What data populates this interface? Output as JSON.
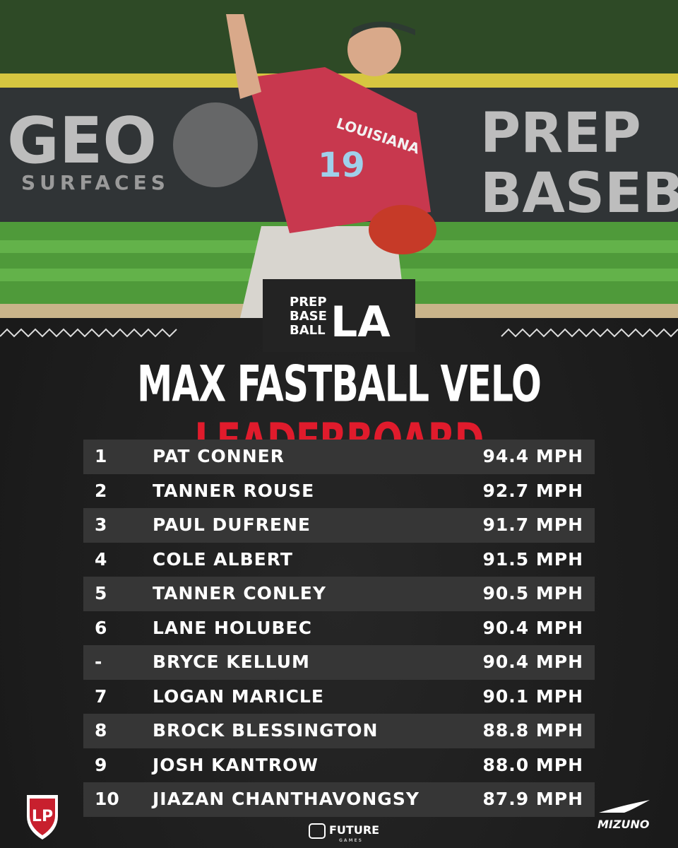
{
  "photo": {
    "banner_left": "GEO",
    "banner_left_sub": "SURFACES",
    "banner_right_1": "PREP",
    "banner_right_2": "BASEB",
    "jersey_text": "LOUISIANA",
    "jersey_number": "19"
  },
  "logo": {
    "line1": "PREP",
    "line2": "BASE",
    "line3": "BALL",
    "region": "LA"
  },
  "title": {
    "main": "MAX FASTBALL VELO",
    "accent": "LEADERBOARD"
  },
  "table": {
    "rows": [
      [
        "1",
        "PAT CONNER",
        "94.4 MPH"
      ],
      [
        "2",
        "TANNER ROUSE",
        "92.7 MPH"
      ],
      [
        "3",
        "PAUL DUFRENE",
        "91.7 MPH"
      ],
      [
        "4",
        "COLE ALBERT",
        "91.5 MPH"
      ],
      [
        "5",
        "TANNER CONLEY",
        "90.5 MPH"
      ],
      [
        "6",
        "LANE HOLUBEC",
        "90.4 MPH"
      ],
      [
        "-",
        "BRYCE KELLUM",
        "90.4 MPH"
      ],
      [
        "7",
        "LOGAN MARICLE",
        "90.1 MPH"
      ],
      [
        "8",
        "BROCK BLESSINGTON",
        "88.8 MPH"
      ],
      [
        "9",
        "JOSH KANTROW",
        "88.0 MPH"
      ],
      [
        "10",
        "JIAZAN CHANTHAVONGSY",
        "87.9 MPH"
      ]
    ]
  },
  "footer": {
    "center": "FUTURE",
    "center_sub": "GAMES",
    "right": "MIZUNO"
  }
}
